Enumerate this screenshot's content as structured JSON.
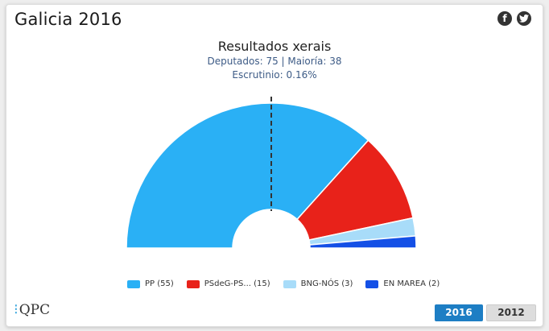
{
  "header": {
    "title": "Galicia 2016",
    "share_icons": [
      "facebook-icon",
      "twitter-icon"
    ]
  },
  "chart_heading": {
    "title": "Resultados xerais",
    "subtitle1": "Deputados: 75 | Maioría: 38",
    "subtitle2": "Escrutinio: 0.16%"
  },
  "chart_data": {
    "type": "pie",
    "variant": "half-donut (parliament seats)",
    "total_seats": 75,
    "majority": 38,
    "series": [
      {
        "name": "PP (55)",
        "party": "PP",
        "seats": 55,
        "color": "#2ab0f5"
      },
      {
        "name": "PSdeG-PS... (15)",
        "party": "PSdeG-PS...",
        "seats": 15,
        "color": "#e8221a"
      },
      {
        "name": "BNG-NÓS (3)",
        "party": "BNG-NÓS",
        "seats": 3,
        "color": "#a8dcf9"
      },
      {
        "name": "EN MAREA (2)",
        "party": "EN MAREA",
        "seats": 2,
        "color": "#1450e6"
      }
    ],
    "legend_position": "bottom"
  },
  "footer": {
    "logo_text": "QPC",
    "year_buttons": [
      {
        "label": "2016",
        "active": true
      },
      {
        "label": "2012",
        "active": false
      }
    ]
  }
}
